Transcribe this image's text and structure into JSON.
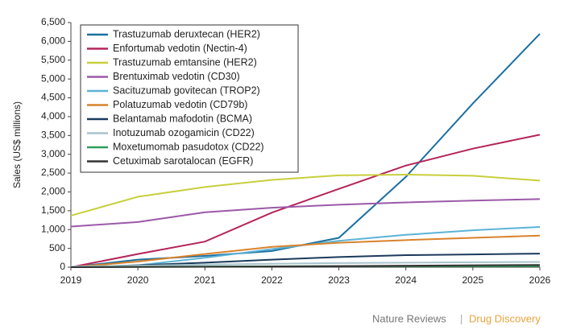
{
  "chart_data": {
    "type": "line",
    "y_label": "Sales (US$ millions)",
    "x": [
      2019,
      2020,
      2021,
      2022,
      2023,
      2024,
      2025,
      2026
    ],
    "xlim": [
      2019,
      2026
    ],
    "xticks": [
      2019,
      2020,
      2021,
      2022,
      2023,
      2024,
      2025,
      2026
    ],
    "ylim": [
      0,
      6500
    ],
    "yticks": [
      0,
      500,
      {
        "value": 1000,
        "label": "1,000"
      },
      {
        "value": 1500,
        "label": "1,500"
      },
      {
        "value": 2000,
        "label": "2,000"
      },
      {
        "value": 2500,
        "label": "2,500"
      },
      {
        "value": 3000,
        "label": "3,000"
      },
      {
        "value": 3500,
        "label": "3,500"
      },
      {
        "value": 4000,
        "label": "4,000"
      },
      {
        "value": 4500,
        "label": "4,500"
      },
      {
        "value": 5000,
        "label": "5,000"
      },
      {
        "value": 5500,
        "label": "5,500"
      },
      {
        "value": 6000,
        "label": "6,000"
      },
      {
        "value": 6500,
        "label": "6,500"
      }
    ],
    "grid": false,
    "legend_position": "upper-left",
    "series": [
      {
        "name": "Trastuzumab deruxtecan (HER2)",
        "color": "#1a6fa0",
        "values": [
          0,
          200,
          300,
          430,
          780,
          2400,
          4350,
          6200
        ]
      },
      {
        "name": "Enfortumab vedotin (Nectin-4)",
        "color": "#b5245a",
        "values": [
          0,
          350,
          680,
          1450,
          2080,
          2700,
          3150,
          3520
        ]
      },
      {
        "name": "Trastuzumab emtansine (HER2)",
        "color": "#c8cf3c",
        "values": [
          1370,
          1870,
          2130,
          2320,
          2440,
          2460,
          2430,
          2300
        ]
      },
      {
        "name": "Brentuximab vedotin (CD30)",
        "color": "#9b59a8",
        "values": [
          1080,
          1200,
          1460,
          1580,
          1660,
          1720,
          1770,
          1810
        ]
      },
      {
        "name": "Sacituzumab govitecan (TROP2)",
        "color": "#5bb3d6",
        "values": [
          0,
          50,
          250,
          480,
          700,
          860,
          980,
          1070
        ]
      },
      {
        "name": "Polatuzumab vedotin (CD79b)",
        "color": "#d9822b",
        "values": [
          0,
          150,
          350,
          540,
          650,
          720,
          780,
          840
        ]
      },
      {
        "name": "Belantamab mafodotin (BCMA)",
        "color": "#1b3a5c",
        "values": [
          0,
          50,
          120,
          200,
          270,
          320,
          340,
          360
        ]
      },
      {
        "name": "Inotuzumab ozogamicin (CD22)",
        "color": "#a8c3cc",
        "values": [
          20,
          40,
          70,
          90,
          110,
          120,
          130,
          140
        ]
      },
      {
        "name": "Moxetumomab pasudotox (CD22)",
        "color": "#2e9e5a",
        "values": [
          0,
          10,
          20,
          25,
          30,
          30,
          30,
          30
        ]
      },
      {
        "name": "Cetuximab sarotalocan (EGFR)",
        "color": "#333333",
        "values": [
          0,
          5,
          10,
          20,
          30,
          40,
          50,
          60
        ]
      }
    ],
    "source": {
      "publisher": "Nature Reviews",
      "separator": "|",
      "journal": "Drug Discovery"
    }
  }
}
